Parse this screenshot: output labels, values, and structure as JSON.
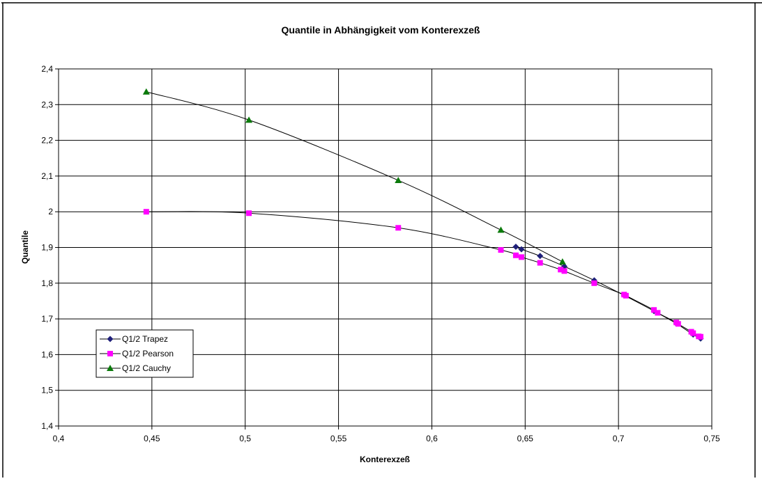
{
  "chart_data": {
    "type": "scatter",
    "title": "Quantile in Abhängigkeit vom Konterexzeß",
    "xlabel": "Konterexzeß",
    "ylabel": "Quantile",
    "xlim": [
      0.4,
      0.75
    ],
    "ylim": [
      1.4,
      2.4
    ],
    "x_ticks": [
      "0,4",
      "0,45",
      "0,5",
      "0,55",
      "0,6",
      "0,65",
      "0,7",
      "0,75"
    ],
    "y_ticks": [
      "1,4",
      "1,5",
      "1,6",
      "1,7",
      "1,8",
      "1,9",
      "2",
      "2,1",
      "2,2",
      "2,3",
      "2,4"
    ],
    "grid": true,
    "legend_position": "bottom-left",
    "series": [
      {
        "name": "Q1/2 Trapez",
        "color": "#1f1f7a",
        "marker": "diamond",
        "x": [
          0.645,
          0.648,
          0.658,
          0.671,
          0.687,
          0.703,
          0.719,
          0.731,
          0.74,
          0.744
        ],
        "y": [
          1.902,
          1.895,
          1.876,
          1.847,
          1.808,
          1.766,
          1.722,
          1.687,
          1.656,
          1.645
        ]
      },
      {
        "name": "Q1/2 Pearson",
        "color": "#ff00ff",
        "marker": "square",
        "x": [
          0.447,
          0.502,
          0.582,
          0.637,
          0.645,
          0.648,
          0.658,
          0.669,
          0.671,
          0.687,
          0.703,
          0.704,
          0.719,
          0.721,
          0.731,
          0.732,
          0.739,
          0.74,
          0.743,
          0.744
        ],
        "y": [
          2.0,
          1.996,
          1.955,
          1.893,
          1.878,
          1.873,
          1.857,
          1.838,
          1.834,
          1.8,
          1.768,
          1.765,
          1.725,
          1.717,
          1.69,
          1.686,
          1.664,
          1.66,
          1.651,
          1.65
        ]
      },
      {
        "name": "Q1/2 Cauchy",
        "color": "#0b7a0b",
        "marker": "triangle",
        "x": [
          0.447,
          0.502,
          0.582,
          0.637,
          0.67
        ],
        "y": [
          2.336,
          2.257,
          2.088,
          1.949,
          1.86
        ]
      }
    ]
  }
}
